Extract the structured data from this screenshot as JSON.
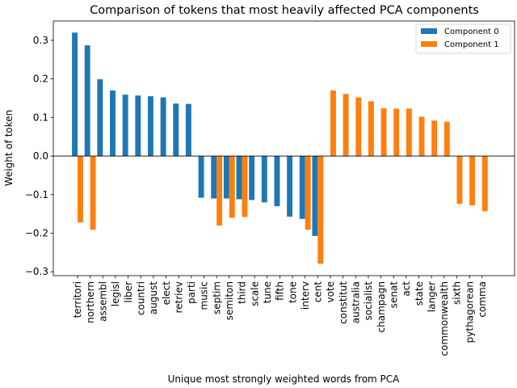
{
  "chart_data": {
    "type": "bar",
    "title": "Comparison of tokens that most heavily affected PCA components",
    "xlabel": "Unique most strongly weighted words from PCA",
    "ylabel": "Weight of token",
    "ylim": [
      -0.31,
      0.35
    ],
    "yticks": [
      -0.3,
      -0.2,
      -0.1,
      0.0,
      0.1,
      0.2,
      0.3
    ],
    "ytick_labels": [
      "−0.3",
      "−0.2",
      "−0.1",
      "0.0",
      "0.1",
      "0.2",
      "0.3"
    ],
    "grid": false,
    "legend_position": "top-right",
    "categories": [
      "territori",
      "northern",
      "assembl",
      "legisl",
      "liber",
      "countri",
      "august",
      "elect",
      "retriev",
      "parti",
      "music",
      "septim",
      "semiton",
      "third",
      "scale",
      "tune",
      "fifth",
      "tone",
      "interv",
      "cent",
      "vote",
      "constitut",
      "australia",
      "socialist",
      "champagn",
      "senat",
      "act",
      "state",
      "langer",
      "commonwealth",
      "sixth",
      "pythagorean",
      "comma"
    ],
    "series": [
      {
        "name": "Component 0",
        "color": "#1f77b4",
        "values": [
          0.32,
          0.287,
          0.199,
          0.17,
          0.159,
          0.157,
          0.155,
          0.152,
          0.136,
          0.135,
          -0.108,
          -0.11,
          -0.11,
          -0.112,
          -0.114,
          -0.12,
          -0.13,
          -0.157,
          -0.163,
          -0.207,
          null,
          null,
          null,
          null,
          null,
          null,
          null,
          null,
          null,
          null,
          null,
          null,
          null
        ]
      },
      {
        "name": "Component 1",
        "color": "#ff7f0e",
        "values": [
          -0.172,
          -0.191,
          null,
          null,
          null,
          null,
          null,
          null,
          null,
          null,
          null,
          -0.18,
          -0.16,
          -0.158,
          null,
          null,
          null,
          null,
          -0.191,
          -0.279,
          0.17,
          0.161,
          0.152,
          0.142,
          0.124,
          0.123,
          0.123,
          0.102,
          0.092,
          0.089,
          -0.124,
          -0.128,
          -0.143
        ]
      }
    ]
  }
}
